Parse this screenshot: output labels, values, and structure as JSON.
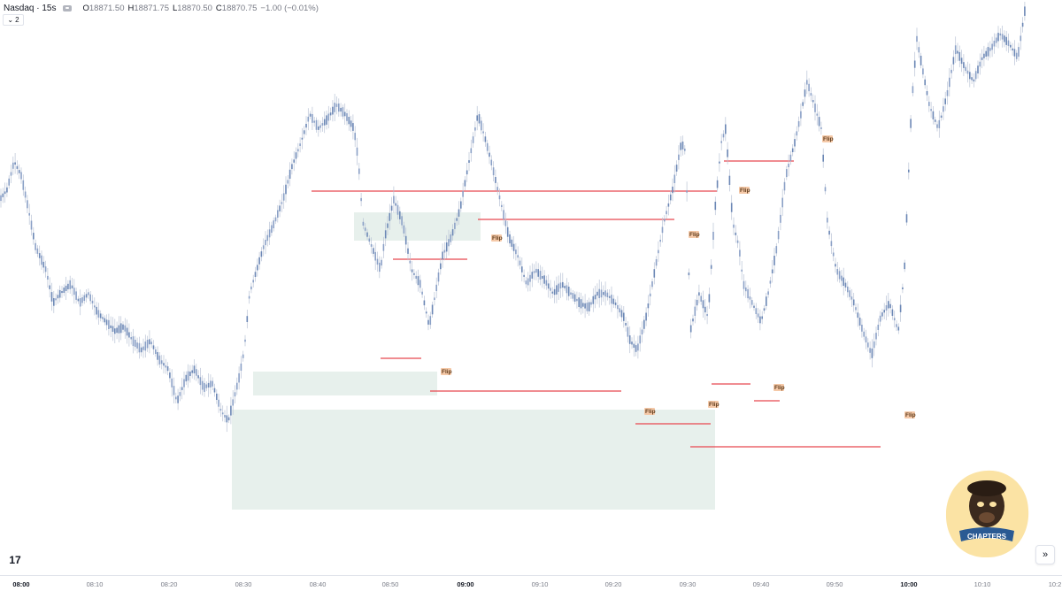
{
  "legend": {
    "symbol": "Nasdaq · 15s",
    "open_label": "O",
    "open": "18871.50",
    "high_label": "H",
    "high": "18871.75",
    "low_label": "L",
    "low": "18870.50",
    "close_label": "C",
    "close": "18870.75",
    "change": "−1.00 (−0.01%)"
  },
  "collapse_count": "2",
  "tv_logo": "17",
  "scroll_icon": "»",
  "logo_text": "CHAPTERS",
  "flip_text": "Flip",
  "time_axis": [
    "08:00",
    "08:10",
    "08:20",
    "08:30",
    "08:40",
    "08:50",
    "09:00",
    "09:10",
    "09:20",
    "09:30",
    "09:40",
    "09:50",
    "10:00",
    "10:10",
    "10:2"
  ],
  "colors": {
    "candle": "#6b87b5",
    "level": "#e8474f",
    "zone": "#e3ede9",
    "flip_bg": "#f5c9a8",
    "logo_bg": "#fbe3a4"
  },
  "chart_data": {
    "type": "candlestick",
    "instrument": "Nasdaq",
    "interval": "15s",
    "price_trace": [
      [
        0,
        0.4
      ],
      [
        8,
        0.38
      ],
      [
        16,
        0.32
      ],
      [
        24,
        0.35
      ],
      [
        32,
        0.42
      ],
      [
        40,
        0.5
      ],
      [
        52,
        0.55
      ],
      [
        60,
        0.62
      ],
      [
        68,
        0.6
      ],
      [
        80,
        0.58
      ],
      [
        90,
        0.62
      ],
      [
        100,
        0.6
      ],
      [
        110,
        0.64
      ],
      [
        120,
        0.66
      ],
      [
        130,
        0.68
      ],
      [
        140,
        0.67
      ],
      [
        150,
        0.7
      ],
      [
        160,
        0.72
      ],
      [
        170,
        0.7
      ],
      [
        180,
        0.74
      ],
      [
        190,
        0.76
      ],
      [
        200,
        0.83
      ],
      [
        210,
        0.78
      ],
      [
        220,
        0.76
      ],
      [
        230,
        0.8
      ],
      [
        240,
        0.79
      ],
      [
        250,
        0.85
      ],
      [
        258,
        0.87
      ],
      [
        262,
        0.84
      ],
      [
        270,
        0.78
      ],
      [
        276,
        0.72
      ],
      [
        282,
        0.6
      ],
      [
        290,
        0.55
      ],
      [
        298,
        0.5
      ],
      [
        310,
        0.45
      ],
      [
        320,
        0.4
      ],
      [
        330,
        0.33
      ],
      [
        340,
        0.28
      ],
      [
        350,
        0.22
      ],
      [
        360,
        0.25
      ],
      [
        370,
        0.23
      ],
      [
        380,
        0.2
      ],
      [
        390,
        0.22
      ],
      [
        400,
        0.25
      ],
      [
        405,
        0.32
      ],
      [
        410,
        0.45
      ],
      [
        420,
        0.5
      ],
      [
        430,
        0.55
      ],
      [
        435,
        0.48
      ],
      [
        445,
        0.4
      ],
      [
        455,
        0.45
      ],
      [
        465,
        0.55
      ],
      [
        475,
        0.58
      ],
      [
        485,
        0.67
      ],
      [
        490,
        0.62
      ],
      [
        500,
        0.52
      ],
      [
        510,
        0.48
      ],
      [
        520,
        0.42
      ],
      [
        530,
        0.32
      ],
      [
        540,
        0.22
      ],
      [
        548,
        0.27
      ],
      [
        555,
        0.32
      ],
      [
        565,
        0.4
      ],
      [
        575,
        0.48
      ],
      [
        585,
        0.52
      ],
      [
        595,
        0.58
      ],
      [
        605,
        0.55
      ],
      [
        615,
        0.57
      ],
      [
        625,
        0.6
      ],
      [
        635,
        0.58
      ],
      [
        645,
        0.6
      ],
      [
        655,
        0.62
      ],
      [
        665,
        0.63
      ],
      [
        675,
        0.6
      ],
      [
        685,
        0.6
      ],
      [
        695,
        0.62
      ],
      [
        705,
        0.65
      ],
      [
        712,
        0.7
      ],
      [
        720,
        0.72
      ],
      [
        730,
        0.65
      ],
      [
        740,
        0.55
      ],
      [
        750,
        0.45
      ],
      [
        760,
        0.38
      ],
      [
        770,
        0.28
      ],
      [
        775,
        0.3
      ],
      [
        780,
        0.68
      ],
      [
        790,
        0.6
      ],
      [
        800,
        0.65
      ],
      [
        808,
        0.42
      ],
      [
        815,
        0.28
      ],
      [
        820,
        0.25
      ],
      [
        828,
        0.45
      ],
      [
        835,
        0.5
      ],
      [
        840,
        0.58
      ],
      [
        850,
        0.62
      ],
      [
        860,
        0.66
      ],
      [
        868,
        0.6
      ],
      [
        878,
        0.5
      ],
      [
        888,
        0.35
      ],
      [
        898,
        0.28
      ],
      [
        905,
        0.22
      ],
      [
        912,
        0.15
      ],
      [
        920,
        0.2
      ],
      [
        928,
        0.25
      ],
      [
        935,
        0.45
      ],
      [
        945,
        0.55
      ],
      [
        955,
        0.58
      ],
      [
        965,
        0.62
      ],
      [
        975,
        0.68
      ],
      [
        985,
        0.73
      ],
      [
        995,
        0.65
      ],
      [
        1005,
        0.62
      ],
      [
        1015,
        0.68
      ],
      [
        1022,
        0.55
      ],
      [
        1030,
        0.2
      ],
      [
        1036,
        0.06
      ],
      [
        1042,
        0.12
      ],
      [
        1050,
        0.2
      ],
      [
        1060,
        0.25
      ],
      [
        1070,
        0.18
      ],
      [
        1080,
        0.08
      ],
      [
        1090,
        0.12
      ],
      [
        1100,
        0.15
      ],
      [
        1110,
        0.1
      ],
      [
        1120,
        0.08
      ],
      [
        1130,
        0.05
      ],
      [
        1140,
        0.07
      ],
      [
        1150,
        0.1
      ],
      [
        1158,
        0.0
      ]
    ]
  }
}
